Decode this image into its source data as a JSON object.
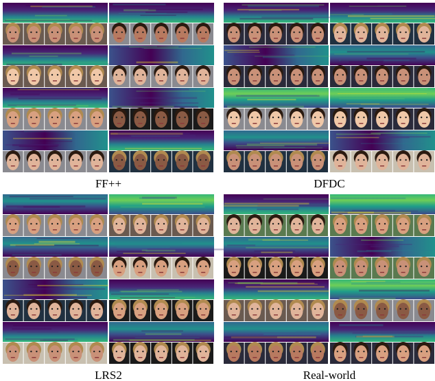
{
  "panels": [
    {
      "label": "FF++"
    },
    {
      "label": "DFDC"
    },
    {
      "label": "LRS2"
    },
    {
      "label": "Real-world"
    }
  ]
}
